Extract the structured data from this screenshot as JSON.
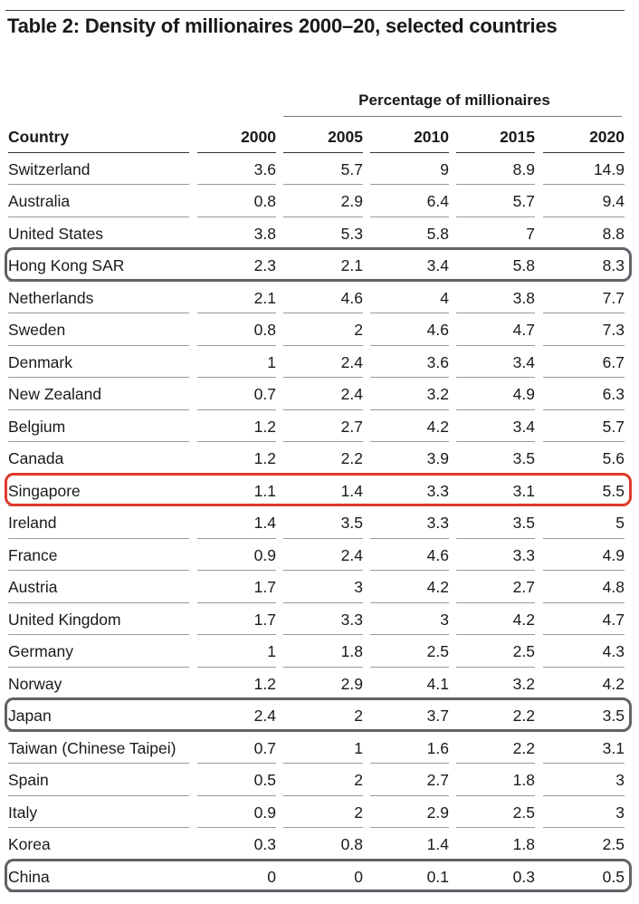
{
  "title": "Table 2: Density of millionaires 2000–20, selected countries",
  "group_header": "Percentage of millionaires",
  "columns": [
    "Country",
    "2000",
    "2005",
    "2010",
    "2015",
    "2020"
  ],
  "rows": [
    [
      "Switzerland",
      "3.6",
      "5.7",
      "9",
      "8.9",
      "14.9"
    ],
    [
      "Australia",
      "0.8",
      "2.9",
      "6.4",
      "5.7",
      "9.4"
    ],
    [
      "United States",
      "3.8",
      "5.3",
      "5.8",
      "7",
      "8.8"
    ],
    [
      "Hong Kong SAR",
      "2.3",
      "2.1",
      "3.4",
      "5.8",
      "8.3"
    ],
    [
      "Netherlands",
      "2.1",
      "4.6",
      "4",
      "3.8",
      "7.7"
    ],
    [
      "Sweden",
      "0.8",
      "2",
      "4.6",
      "4.7",
      "7.3"
    ],
    [
      "Denmark",
      "1",
      "2.4",
      "3.6",
      "3.4",
      "6.7"
    ],
    [
      "New Zealand",
      "0.7",
      "2.4",
      "3.2",
      "4.9",
      "6.3"
    ],
    [
      "Belgium",
      "1.2",
      "2.7",
      "4.2",
      "3.4",
      "5.7"
    ],
    [
      "Canada",
      "1.2",
      "2.2",
      "3.9",
      "3.5",
      "5.6"
    ],
    [
      "Singapore",
      "1.1",
      "1.4",
      "3.3",
      "3.1",
      "5.5"
    ],
    [
      "Ireland",
      "1.4",
      "3.5",
      "3.3",
      "3.5",
      "5"
    ],
    [
      "France",
      "0.9",
      "2.4",
      "4.6",
      "3.3",
      "4.9"
    ],
    [
      "Austria",
      "1.7",
      "3",
      "4.2",
      "2.7",
      "4.8"
    ],
    [
      "United Kingdom",
      "1.7",
      "3.3",
      "3",
      "4.2",
      "4.7"
    ],
    [
      "Germany",
      "1",
      "1.8",
      "2.5",
      "2.5",
      "4.3"
    ],
    [
      "Norway",
      "1.2",
      "2.9",
      "4.1",
      "3.2",
      "4.2"
    ],
    [
      "Japan",
      "2.4",
      "2",
      "3.7",
      "2.2",
      "3.5"
    ],
    [
      "Taiwan (Chinese Taipei)",
      "0.7",
      "1",
      "1.6",
      "2.2",
      "3.1"
    ],
    [
      "Spain",
      "0.5",
      "2",
      "2.7",
      "1.8",
      "3"
    ],
    [
      "Italy",
      "0.9",
      "2",
      "2.9",
      "2.5",
      "3"
    ],
    [
      "Korea",
      "0.3",
      "0.8",
      "1.4",
      "1.8",
      "2.5"
    ],
    [
      "China",
      "0",
      "0",
      "0.1",
      "0.3",
      "0.5"
    ]
  ],
  "highlights": [
    {
      "country": "Hong Kong SAR",
      "color": "#5f6368"
    },
    {
      "country": "Singapore",
      "color": "#e03a2a"
    },
    {
      "country": "Japan",
      "color": "#5f6368"
    },
    {
      "country": "China",
      "color": "#5f6368"
    }
  ]
}
